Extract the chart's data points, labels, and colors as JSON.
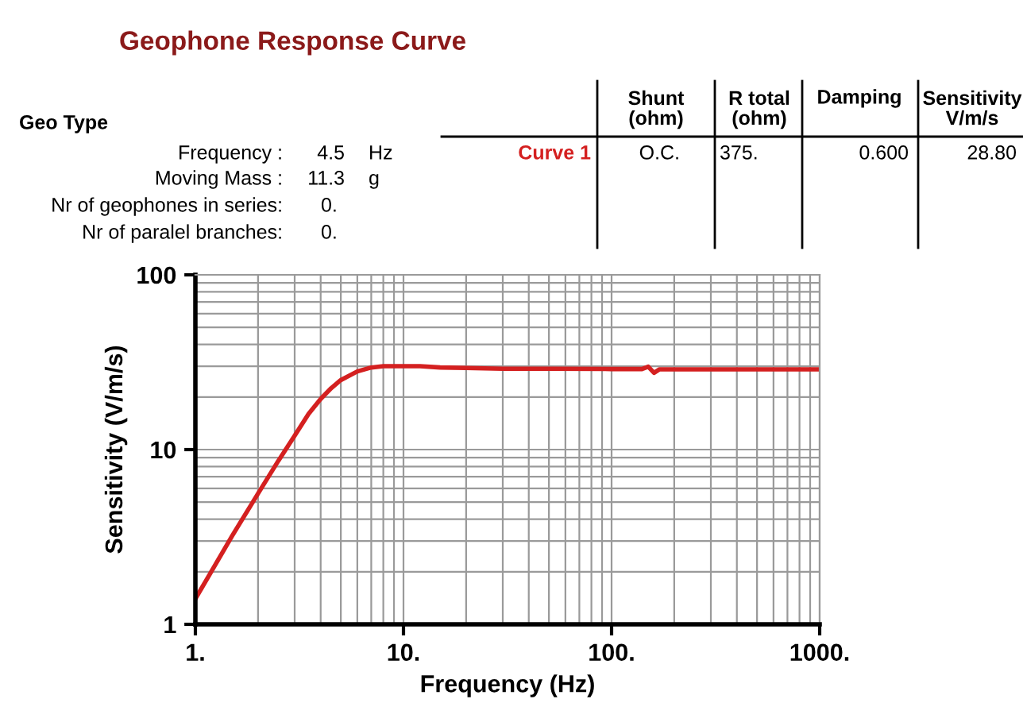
{
  "chart_data": {
    "type": "line",
    "title": "Geophone Response Curve",
    "xlabel": "Frequency (Hz)",
    "ylabel": "Sensitivity (V/m/s)",
    "x": [
      1,
      1.5,
      2,
      2.5,
      3,
      3.5,
      4,
      4.5,
      5,
      6,
      7,
      8,
      10,
      12,
      15,
      20,
      30,
      50,
      100,
      140,
      150,
      160,
      170,
      200,
      500,
      1000
    ],
    "series": [
      {
        "name": "Curve 1",
        "color": "#d42020",
        "values": [
          1.4,
          3.2,
          5.6,
          8.6,
          12,
          16,
          19.5,
          22.5,
          25,
          28,
          29.5,
          30,
          30,
          30,
          29.5,
          29.3,
          29,
          29,
          28.9,
          28.9,
          29.8,
          27.5,
          28.8,
          28.8,
          28.8,
          28.8
        ]
      }
    ],
    "log": "xy",
    "xlim": [
      1,
      1000
    ],
    "ylim": [
      1,
      100
    ],
    "xticks": [
      {
        "value": 1,
        "label": "1."
      },
      {
        "value": 10,
        "label": "10."
      },
      {
        "value": 100,
        "label": "100."
      },
      {
        "value": 1000,
        "label": "1000."
      }
    ],
    "yticks": [
      1,
      10,
      100
    ],
    "grid": true,
    "legend": false,
    "marker": "none",
    "line_style": "solid",
    "annotations": [
      "Geo Type",
      "Frequency :",
      "4.5",
      "Hz",
      "Moving Mass :",
      "11.3",
      "g",
      "Nr of geophones in series:",
      "0.",
      "Nr of paralel branches:",
      "0.",
      "Shunt\n(ohm)",
      "R total\n(ohm)",
      "Damping",
      "Sensitivity\nV/m/s",
      "O.C.",
      "375.",
      "0.600",
      "28.80"
    ]
  }
}
